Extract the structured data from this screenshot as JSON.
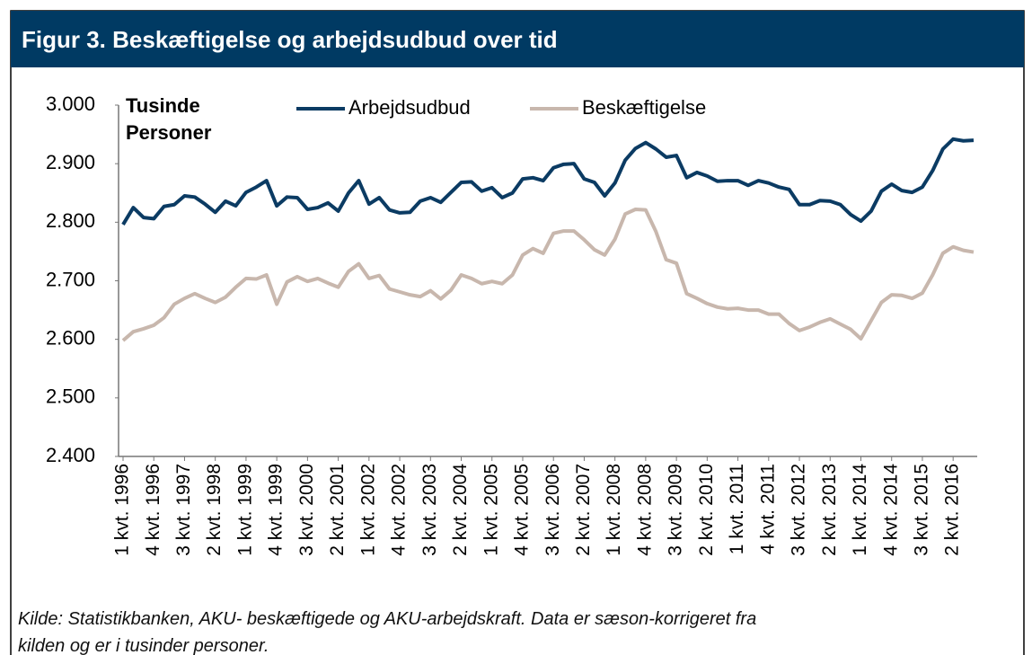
{
  "chart_data": {
    "type": "line",
    "title": "Figur 3. Beskæftigelse og arbejdsudbud over tid",
    "y_label": "Tusinde Personer",
    "note": "Kilde: Statistikbanken, AKU- beskæftigede og AKU-arbejdskraft. Data er sæson-korrigeret fra kilden og er i tusinder personer.",
    "categories": [
      "1 kvt. 1996",
      null,
      null,
      "4 kvt. 1996",
      null,
      null,
      "3 kvt. 1997",
      null,
      null,
      "2 kvt. 1998",
      null,
      null,
      "1 kvt. 1999",
      null,
      null,
      "4 kvt. 1999",
      null,
      null,
      "3 kvt. 2000",
      null,
      null,
      "2 kvt. 2001",
      null,
      null,
      "1 kvt. 2002",
      null,
      null,
      "4 kvt. 2002",
      null,
      null,
      "3 kvt. 2003",
      null,
      null,
      "2 kvt. 2004",
      null,
      null,
      "1 kvt. 2005",
      null,
      null,
      "4 kvt. 2005",
      null,
      null,
      "3 kvt. 2006",
      null,
      null,
      "2 kvt. 2007",
      null,
      null,
      "1 kvt. 2008",
      null,
      null,
      "4 kvt. 2008",
      null,
      null,
      "3 kvt. 2009",
      null,
      null,
      "2 kvt. 2010",
      null,
      null,
      "1 kvt. 2011",
      null,
      null,
      "4 kvt. 2011",
      null,
      null,
      "3 kvt. 2012",
      null,
      null,
      "2 kvt. 2013",
      null,
      null,
      "1 kvt. 2014",
      null,
      null,
      "4 kvt. 2014",
      null,
      null,
      "3 kvt. 2015",
      null,
      null,
      "2 kvt. 2016",
      null,
      null
    ],
    "series": [
      {
        "name": "Arbejdsudbud",
        "color": "#0b3b63",
        "values": [
          2796,
          2825,
          2808,
          2806,
          2827,
          2830,
          2845,
          2843,
          2831,
          2817,
          2836,
          2828,
          2851,
          2860,
          2871,
          2828,
          2843,
          2842,
          2822,
          2825,
          2833,
          2819,
          2850,
          2871,
          2831,
          2842,
          2821,
          2816,
          2817,
          2836,
          2842,
          2834,
          2851,
          2868,
          2869,
          2853,
          2859,
          2842,
          2850,
          2874,
          2876,
          2871,
          2893,
          2899,
          2900,
          2874,
          2868,
          2845,
          2867,
          2906,
          2926,
          2936,
          2925,
          2911,
          2914,
          2876,
          2885,
          2879,
          2870,
          2871,
          2871,
          2863,
          2871,
          2867,
          2860,
          2856,
          2830,
          2830,
          2837,
          2836,
          2830,
          2813,
          2802,
          2819,
          2853,
          2865,
          2854,
          2851,
          2860,
          2888,
          2925,
          2942,
          2939,
          2940
        ]
      },
      {
        "name": "Beskæftigelse",
        "color": "#c8b7ad",
        "values": [
          2598,
          2613,
          2618,
          2624,
          2637,
          2660,
          2670,
          2678,
          2670,
          2663,
          2672,
          2689,
          2704,
          2703,
          2710,
          2660,
          2698,
          2707,
          2699,
          2704,
          2696,
          2689,
          2716,
          2729,
          2704,
          2709,
          2686,
          2681,
          2676,
          2673,
          2683,
          2669,
          2684,
          2710,
          2704,
          2695,
          2699,
          2695,
          2710,
          2744,
          2755,
          2747,
          2781,
          2785,
          2785,
          2770,
          2753,
          2744,
          2771,
          2814,
          2822,
          2821,
          2784,
          2736,
          2730,
          2678,
          2670,
          2661,
          2655,
          2652,
          2653,
          2650,
          2650,
          2643,
          2643,
          2627,
          2615,
          2621,
          2629,
          2635,
          2626,
          2617,
          2601,
          2632,
          2663,
          2676,
          2675,
          2670,
          2679,
          2710,
          2747,
          2758,
          2752,
          2749
        ]
      }
    ],
    "ylim": [
      2400,
      3000
    ],
    "yticks": [
      {
        "value": 2400,
        "label": "2.400"
      },
      {
        "value": 2500,
        "label": "2.500"
      },
      {
        "value": 2600,
        "label": "2.600"
      },
      {
        "value": 2700,
        "label": "2.700"
      },
      {
        "value": 2800,
        "label": "2.800"
      },
      {
        "value": 2900,
        "label": "2.900"
      },
      {
        "value": 3000,
        "label": "3.000"
      }
    ],
    "grid": false,
    "legend": "top"
  }
}
